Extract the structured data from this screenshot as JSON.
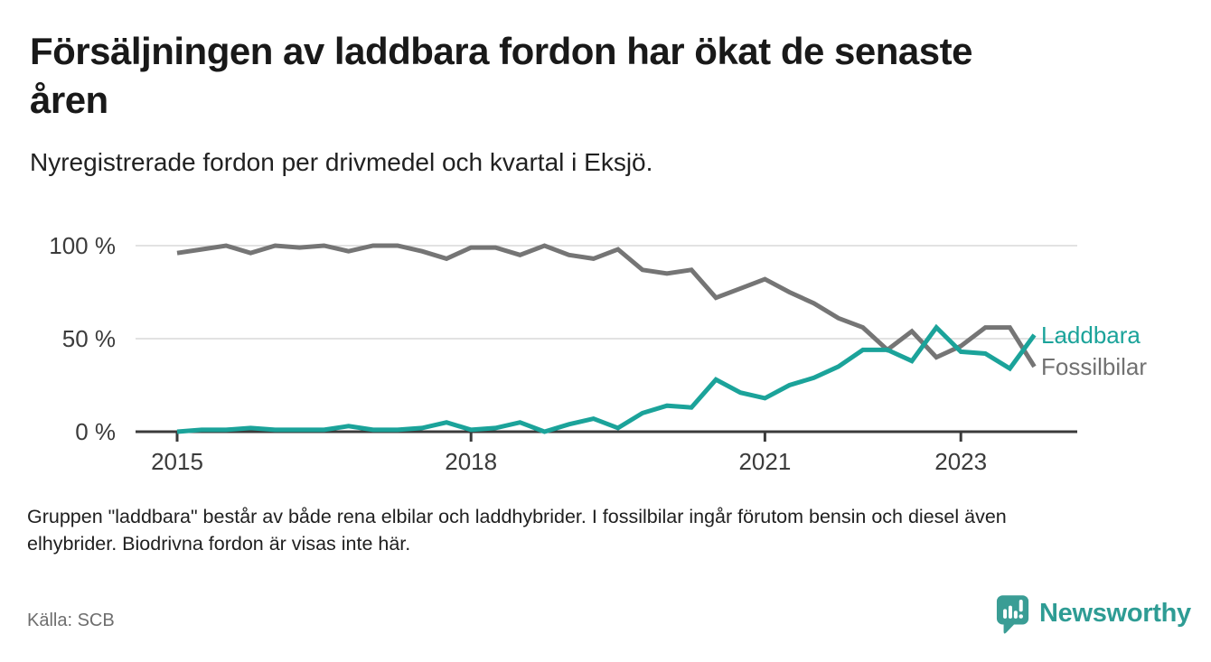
{
  "header": {
    "title_line1": "Försäljningen av laddbara fordon har ökat de senaste",
    "title_line2": "åren",
    "subtitle": "Nyregistrerade fordon per drivmedel och kvartal i Eksjö."
  },
  "chart_data": {
    "type": "line",
    "title": "Försäljningen av laddbara fordon har ökat de senaste åren",
    "subtitle": "Nyregistrerade fordon per drivmedel och kvartal i Eksjö.",
    "x_unit": "quarter",
    "quarters": [
      "2015 Q1",
      "2015 Q2",
      "2015 Q3",
      "2015 Q4",
      "2016 Q1",
      "2016 Q2",
      "2016 Q3",
      "2016 Q4",
      "2017 Q1",
      "2017 Q2",
      "2017 Q3",
      "2017 Q4",
      "2018 Q1",
      "2018 Q2",
      "2018 Q3",
      "2018 Q4",
      "2019 Q1",
      "2019 Q2",
      "2019 Q3",
      "2019 Q4",
      "2020 Q1",
      "2020 Q2",
      "2020 Q3",
      "2020 Q4",
      "2021 Q1",
      "2021 Q2",
      "2021 Q3",
      "2021 Q4",
      "2022 Q1",
      "2022 Q2",
      "2022 Q3",
      "2022 Q4",
      "2023 Q1",
      "2023 Q2",
      "2023 Q3",
      "2023 Q4"
    ],
    "series": [
      {
        "name": "Laddbara",
        "color": "#1ba39a",
        "values": [
          0,
          1,
          1,
          2,
          1,
          1,
          1,
          3,
          1,
          1,
          2,
          5,
          1,
          2,
          5,
          0,
          4,
          7,
          2,
          10,
          14,
          13,
          28,
          21,
          18,
          25,
          29,
          35,
          44,
          44,
          38,
          56,
          43,
          42,
          34,
          52
        ]
      },
      {
        "name": "Fossilbilar",
        "color": "#757575",
        "values": [
          96,
          98,
          100,
          96,
          100,
          99,
          100,
          97,
          100,
          100,
          97,
          93,
          99,
          99,
          95,
          100,
          95,
          93,
          98,
          87,
          85,
          87,
          72,
          77,
          82,
          75,
          69,
          61,
          56,
          44,
          54,
          40,
          46,
          56,
          56,
          35
        ]
      }
    ],
    "yticks": [
      {
        "value": 0,
        "label": "0 %"
      },
      {
        "value": 50,
        "label": "50 %"
      },
      {
        "value": 100,
        "label": "100 %"
      }
    ],
    "xticks": [
      {
        "index": 0,
        "label": "2015"
      },
      {
        "index": 12,
        "label": "2018"
      },
      {
        "index": 24,
        "label": "2021"
      },
      {
        "index": 32,
        "label": "2023"
      }
    ],
    "ylim": [
      0,
      100
    ],
    "grid": "horizontal",
    "legend_position": "right-of-line-end"
  },
  "footer": {
    "note_line1": "Gruppen \"laddbara\" består av både rena elbilar och laddhybrider. I fossilbilar ingår förutom bensin och diesel även",
    "note_line2": "elhybrider. Biodrivna fordon är visas inte här.",
    "source": "Källa: SCB",
    "brand": "Newsworthy"
  },
  "colors": {
    "accent_teal": "#1ba39a",
    "line_gray": "#757575",
    "gridline": "#d8d8d8",
    "axis": "#3b3b3b",
    "brand_teal": "#2e9c94"
  }
}
